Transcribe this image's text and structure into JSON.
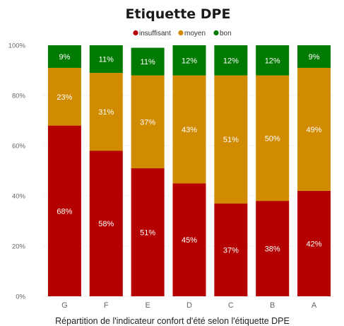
{
  "chart_data": {
    "type": "bar",
    "stacked": true,
    "title": "Etiquette DPE",
    "caption": "Répartition de l'indicateur confort d'été selon l'étiquette DPE",
    "categories": [
      "G",
      "F",
      "E",
      "D",
      "C",
      "B",
      "A"
    ],
    "series": [
      {
        "name": "insuffisant",
        "color": "#B50000",
        "values": [
          68,
          58,
          51,
          45,
          37,
          38,
          42
        ]
      },
      {
        "name": "moyen",
        "color": "#D08B00",
        "values": [
          23,
          31,
          37,
          43,
          51,
          50,
          49
        ]
      },
      {
        "name": "bon",
        "color": "#007A00",
        "values": [
          9,
          11,
          11,
          12,
          12,
          12,
          9
        ]
      }
    ],
    "yticks": [
      "0%",
      "20%",
      "40%",
      "60%",
      "80%",
      "100%"
    ],
    "ylim": [
      0,
      100
    ],
    "legend_position": "top-center",
    "grid": true
  }
}
